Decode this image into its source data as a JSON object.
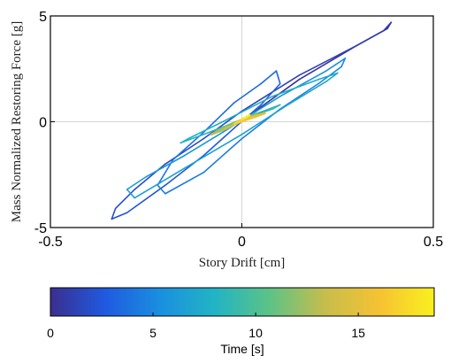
{
  "chart_data": {
    "type": "line",
    "title": "",
    "xlabel": "Story Drift [cm]",
    "ylabel": "Mass Normalized Restoring Force [g]",
    "xlim": [
      -0.5,
      0.5
    ],
    "ylim": [
      -5,
      5
    ],
    "x_ticks": [
      -0.5,
      0,
      0.5
    ],
    "x_tick_labels": [
      "-0.5",
      "0",
      "0.5"
    ],
    "y_ticks": [
      -5,
      0,
      5
    ],
    "y_tick_labels": [
      "-5",
      "0",
      "5"
    ],
    "grid": "zero lines only",
    "color_encoding": "time",
    "series": [
      {
        "time_range": [
          0,
          18.7
        ],
        "x": [
          0,
          0.05,
          0.15,
          0.3,
          0.38,
          0.39,
          0.37,
          0.3,
          0.15,
          0.0,
          -0.1,
          -0.2,
          -0.28,
          -0.33,
          -0.34,
          -0.3,
          -0.2,
          -0.1,
          -0.02,
          0.05,
          0.1,
          0.09,
          0.05,
          -0.02,
          -0.1,
          -0.18,
          -0.22,
          -0.2,
          -0.1,
          0.0,
          0.1,
          0.2,
          0.26,
          0.27,
          0.22,
          0.1,
          -0.05,
          -0.15,
          -0.25,
          -0.3,
          -0.28,
          -0.15,
          0.0,
          0.12,
          0.22,
          0.25,
          0.2,
          0.08,
          -0.05,
          -0.14,
          -0.16,
          -0.1,
          0.0,
          0.08,
          0.1,
          0.04,
          -0.04,
          -0.08,
          -0.05,
          0.02,
          0.06,
          0.03,
          -0.02,
          0.0,
          0.02,
          0.01
        ],
        "y": [
          0.0,
          0.7,
          2.0,
          3.6,
          4.4,
          4.7,
          4.3,
          3.6,
          2.2,
          0.5,
          -0.8,
          -2.0,
          -3.2,
          -4.1,
          -4.6,
          -4.3,
          -3.0,
          -1.6,
          -0.3,
          0.8,
          1.8,
          2.4,
          1.8,
          0.9,
          -0.5,
          -1.8,
          -3.0,
          -3.4,
          -2.4,
          -0.8,
          0.6,
          1.8,
          2.6,
          3.0,
          2.4,
          1.2,
          -0.5,
          -1.6,
          -2.6,
          -3.2,
          -3.6,
          -2.2,
          -0.6,
          0.8,
          1.9,
          2.3,
          2.0,
          1.2,
          0.0,
          -0.8,
          -1.0,
          -0.6,
          0.1,
          0.6,
          0.8,
          0.4,
          -0.2,
          -0.6,
          -0.4,
          0.2,
          0.4,
          0.2,
          -0.1,
          0.1,
          0.3,
          0.2
        ]
      }
    ],
    "colorbar": {
      "label": "Time [s]",
      "range": [
        0,
        18.7
      ],
      "ticks": [
        0,
        5,
        10,
        15
      ],
      "tick_labels": [
        "0",
        "5",
        "10",
        "15"
      ],
      "colors": [
        "#3b2e8f",
        "#1f5ae0",
        "#1a8fe0",
        "#22b4c4",
        "#5cc386",
        "#c6bd4c",
        "#f6c233",
        "#f9f01f"
      ]
    }
  }
}
